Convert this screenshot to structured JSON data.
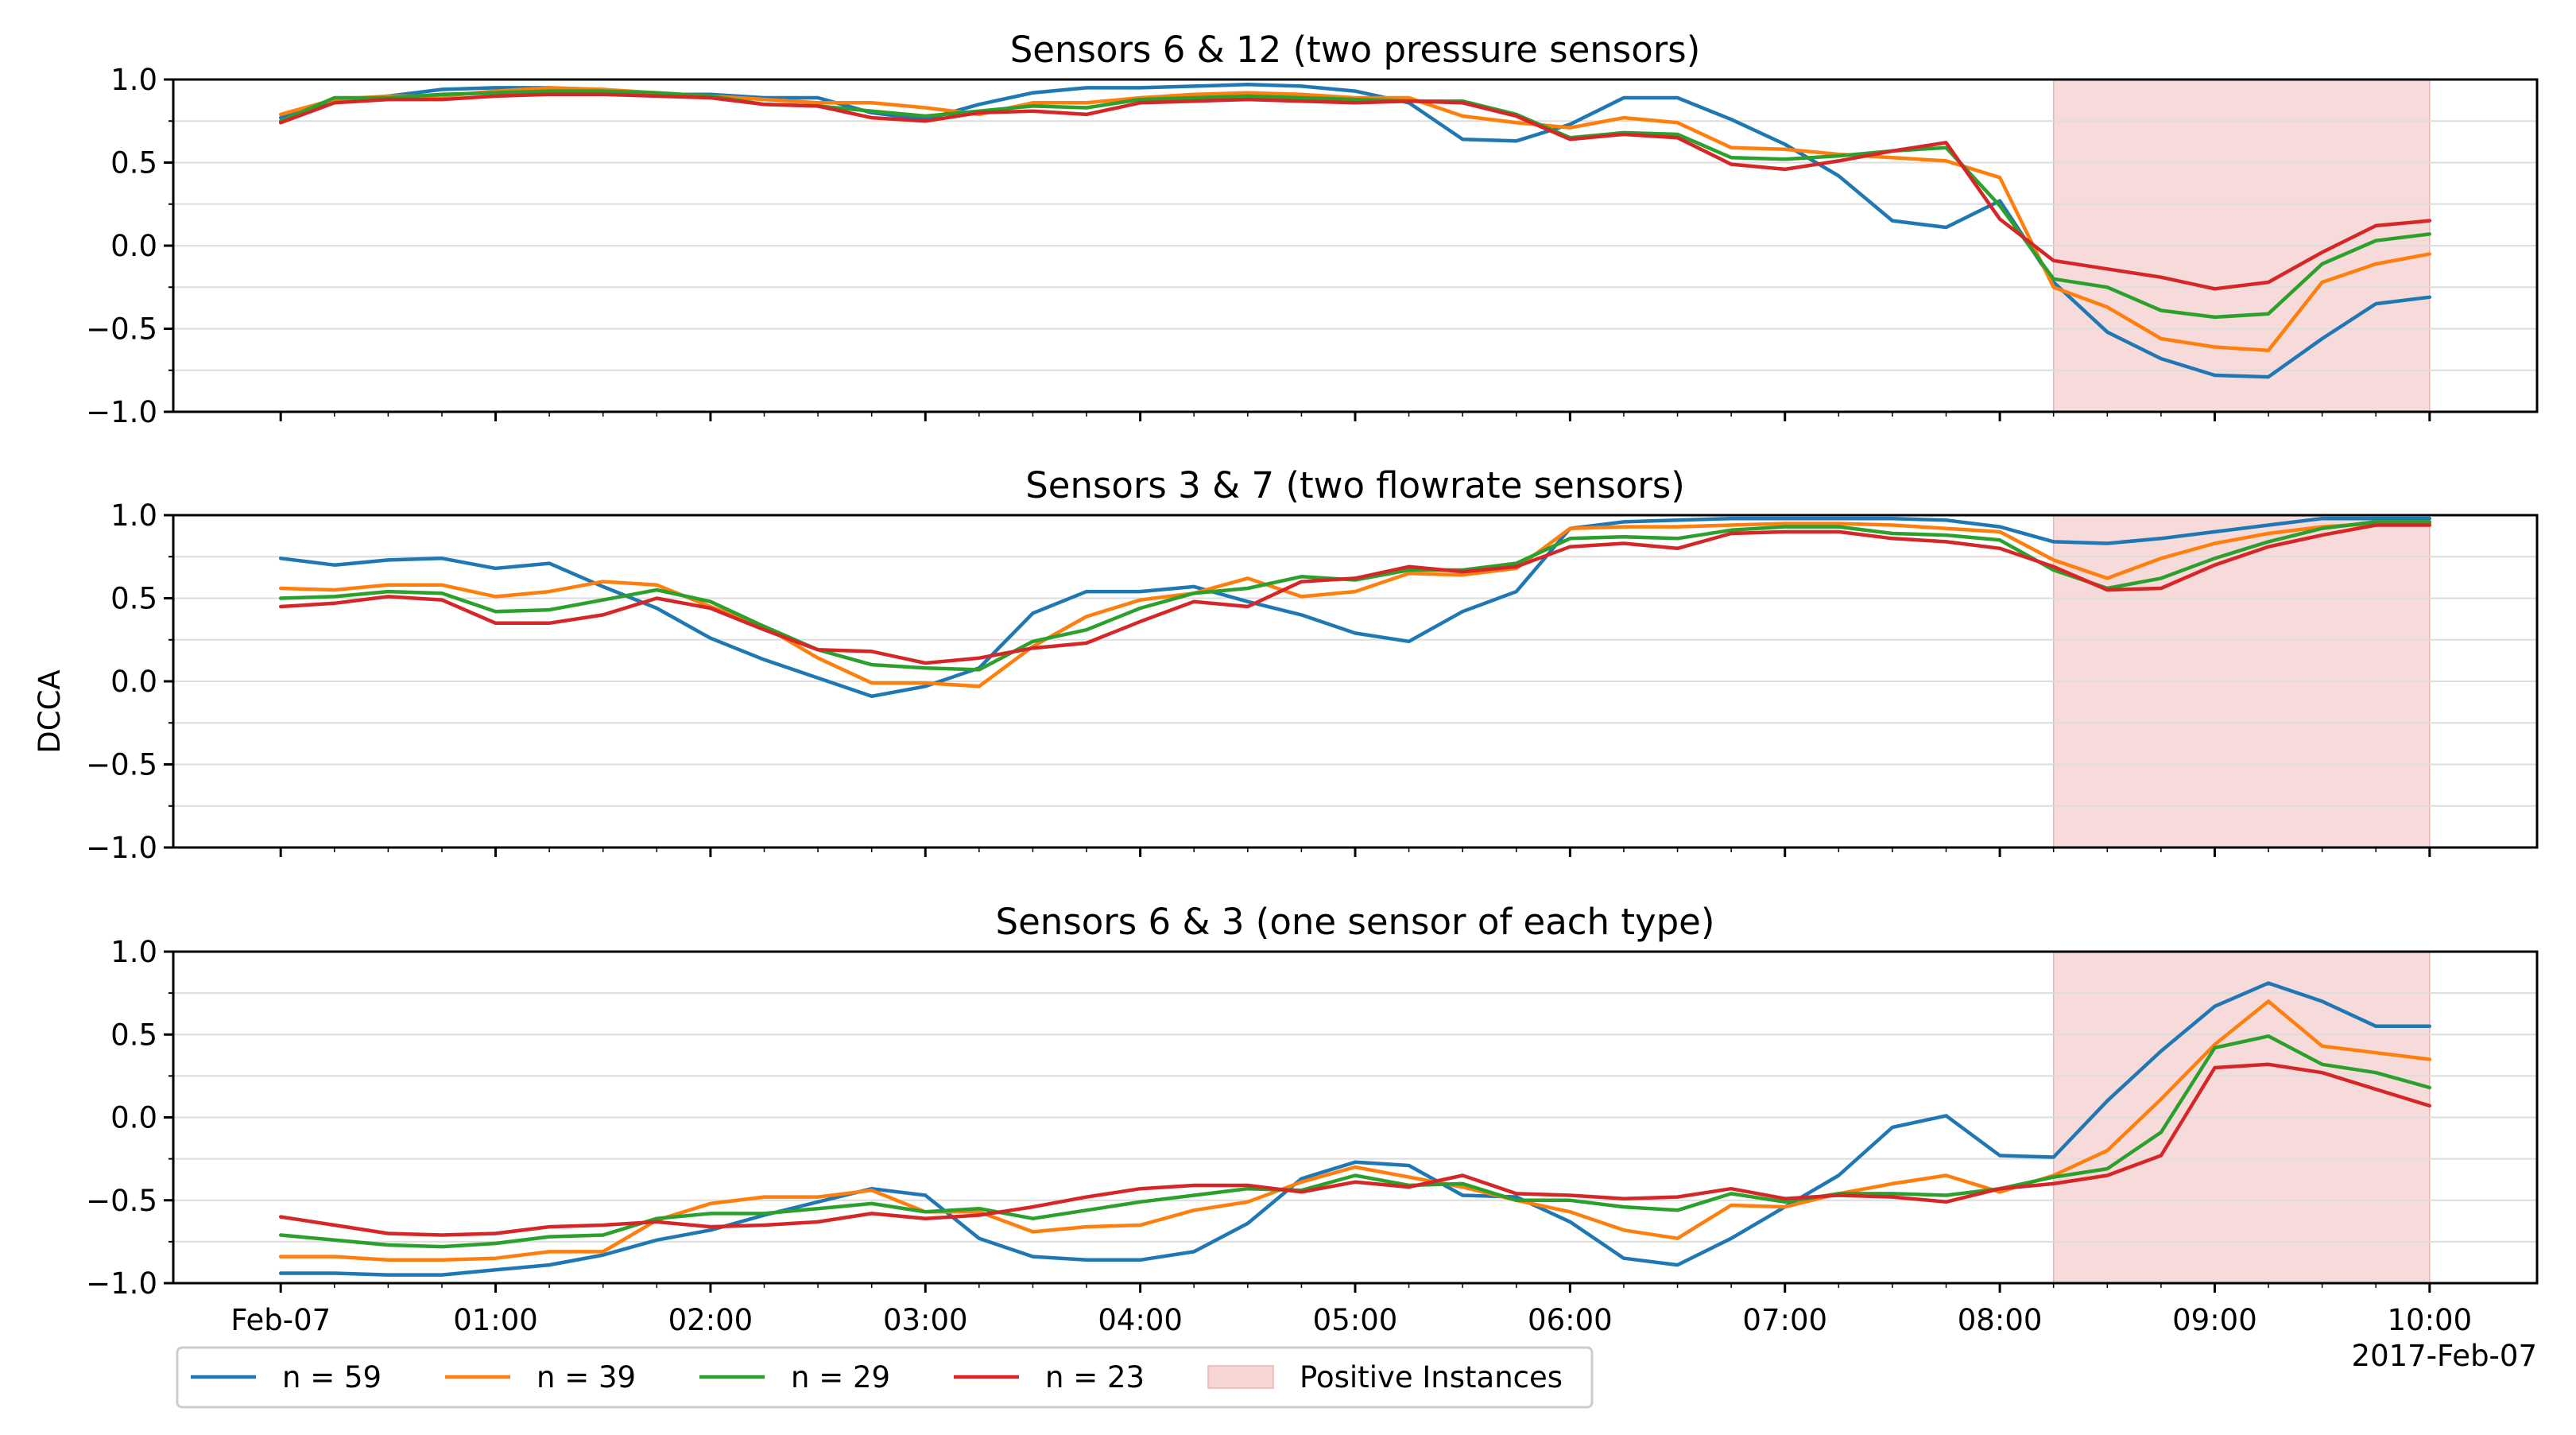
{
  "figure": {
    "ylabel": "DCCA",
    "date_label": "2017-Feb-07",
    "legend_label_positive": "Positive Instances"
  },
  "colors": {
    "n59": "#1f77b4",
    "n39": "#ff7f0e",
    "n29": "#2ca02c",
    "n23": "#d62728",
    "positive_fill": "#f6d5d3",
    "grid": "#dddddd"
  },
  "chart_data": [
    {
      "type": "line",
      "title": "Sensors 6 & 12 (two pressure sensors)",
      "xlabel": "",
      "ylabel": "DCCA",
      "xlim_hours": [
        -0.5,
        10.5
      ],
      "ylim": [
        -1.0,
        1.0
      ],
      "yticks": [
        "1.0",
        "0.5",
        "0.0",
        "−0.5",
        "−1.0"
      ],
      "xtick_labels": [],
      "positive_span_hours": [
        8.25,
        10.0
      ],
      "x": [
        0,
        0.25,
        0.5,
        0.75,
        1,
        1.25,
        1.5,
        1.75,
        2,
        2.25,
        2.5,
        2.75,
        3,
        3.25,
        3.5,
        3.75,
        4,
        4.25,
        4.5,
        4.75,
        5,
        5.25,
        5.5,
        5.75,
        6,
        6.25,
        6.5,
        6.75,
        7,
        7.25,
        7.5,
        7.75,
        8,
        8.25,
        8.5,
        8.75,
        9,
        9.25,
        9.5,
        9.75,
        10
      ],
      "series": [
        {
          "name": "n = 59",
          "color_key": "n59",
          "values": [
            0.77,
            0.87,
            0.9,
            0.94,
            0.95,
            0.95,
            0.92,
            0.91,
            0.91,
            0.89,
            0.89,
            0.8,
            0.76,
            0.85,
            0.92,
            0.95,
            0.95,
            0.96,
            0.97,
            0.96,
            0.93,
            0.86,
            0.64,
            0.63,
            0.73,
            0.89,
            0.89,
            0.76,
            0.61,
            0.42,
            0.15,
            0.11,
            0.27,
            -0.22,
            -0.52,
            -0.68,
            -0.78,
            -0.79,
            -0.56,
            -0.35,
            -0.31
          ]
        },
        {
          "name": "n = 39",
          "color_key": "n39",
          "values": [
            0.79,
            0.88,
            0.9,
            0.9,
            0.93,
            0.95,
            0.94,
            0.92,
            0.9,
            0.88,
            0.86,
            0.86,
            0.83,
            0.79,
            0.86,
            0.86,
            0.89,
            0.91,
            0.92,
            0.91,
            0.89,
            0.89,
            0.78,
            0.74,
            0.71,
            0.77,
            0.74,
            0.59,
            0.58,
            0.55,
            0.53,
            0.51,
            0.41,
            -0.25,
            -0.37,
            -0.56,
            -0.61,
            -0.63,
            -0.22,
            -0.11,
            -0.05
          ]
        },
        {
          "name": "n = 29",
          "color_key": "n29",
          "values": [
            0.75,
            0.89,
            0.89,
            0.91,
            0.92,
            0.93,
            0.93,
            0.92,
            0.9,
            0.85,
            0.84,
            0.81,
            0.78,
            0.81,
            0.84,
            0.83,
            0.88,
            0.89,
            0.9,
            0.89,
            0.88,
            0.87,
            0.87,
            0.79,
            0.65,
            0.68,
            0.67,
            0.53,
            0.52,
            0.54,
            0.57,
            0.59,
            0.24,
            -0.2,
            -0.25,
            -0.39,
            -0.43,
            -0.41,
            -0.11,
            0.03,
            0.07
          ]
        },
        {
          "name": "n = 23",
          "color_key": "n23",
          "values": [
            0.74,
            0.86,
            0.88,
            0.88,
            0.9,
            0.91,
            0.91,
            0.9,
            0.89,
            0.85,
            0.84,
            0.77,
            0.75,
            0.8,
            0.81,
            0.79,
            0.86,
            0.87,
            0.88,
            0.87,
            0.86,
            0.87,
            0.86,
            0.78,
            0.64,
            0.67,
            0.65,
            0.49,
            0.46,
            0.51,
            0.57,
            0.62,
            0.16,
            -0.09,
            -0.14,
            -0.19,
            -0.26,
            -0.22,
            -0.04,
            0.12,
            0.15
          ]
        }
      ]
    },
    {
      "type": "line",
      "title": "Sensors 3 & 7 (two flowrate sensors)",
      "xlabel": "",
      "ylabel": "DCCA",
      "xlim_hours": [
        -0.5,
        10.5
      ],
      "ylim": [
        -1.0,
        1.0
      ],
      "yticks": [
        "1.0",
        "0.5",
        "0.0",
        "−0.5",
        "−1.0"
      ],
      "xtick_labels": [],
      "positive_span_hours": [
        8.25,
        10.0
      ],
      "x": [
        0,
        0.25,
        0.5,
        0.75,
        1,
        1.25,
        1.5,
        1.75,
        2,
        2.25,
        2.5,
        2.75,
        3,
        3.25,
        3.5,
        3.75,
        4,
        4.25,
        4.5,
        4.75,
        5,
        5.25,
        5.5,
        5.75,
        6,
        6.25,
        6.5,
        6.75,
        7,
        7.25,
        7.5,
        7.75,
        8,
        8.25,
        8.5,
        8.75,
        9,
        9.25,
        9.5,
        9.75,
        10
      ],
      "series": [
        {
          "name": "n = 59",
          "color_key": "n59",
          "values": [
            0.74,
            0.7,
            0.73,
            0.74,
            0.68,
            0.71,
            0.57,
            0.44,
            0.26,
            0.13,
            0.02,
            -0.09,
            -0.03,
            0.08,
            0.41,
            0.54,
            0.54,
            0.57,
            0.48,
            0.4,
            0.29,
            0.24,
            0.42,
            0.54,
            0.92,
            0.96,
            0.97,
            0.98,
            0.98,
            0.98,
            0.98,
            0.97,
            0.93,
            0.84,
            0.83,
            0.86,
            0.9,
            0.94,
            0.98,
            0.98,
            0.98
          ]
        },
        {
          "name": "n = 39",
          "color_key": "n39",
          "values": [
            0.56,
            0.55,
            0.58,
            0.58,
            0.51,
            0.54,
            0.6,
            0.58,
            0.45,
            0.33,
            0.14,
            -0.01,
            -0.01,
            -0.03,
            0.21,
            0.39,
            0.49,
            0.53,
            0.62,
            0.51,
            0.54,
            0.65,
            0.64,
            0.68,
            0.92,
            0.93,
            0.93,
            0.94,
            0.95,
            0.95,
            0.94,
            0.92,
            0.9,
            0.73,
            0.62,
            0.74,
            0.83,
            0.89,
            0.93,
            0.95,
            0.95
          ]
        },
        {
          "name": "n = 29",
          "color_key": "n29",
          "values": [
            0.5,
            0.51,
            0.54,
            0.53,
            0.42,
            0.43,
            0.49,
            0.55,
            0.48,
            0.33,
            0.19,
            0.1,
            0.08,
            0.07,
            0.24,
            0.31,
            0.44,
            0.53,
            0.56,
            0.63,
            0.61,
            0.67,
            0.67,
            0.71,
            0.86,
            0.87,
            0.86,
            0.91,
            0.93,
            0.93,
            0.89,
            0.88,
            0.85,
            0.67,
            0.56,
            0.62,
            0.74,
            0.84,
            0.92,
            0.96,
            0.96
          ]
        },
        {
          "name": "n = 23",
          "color_key": "n23",
          "values": [
            0.45,
            0.47,
            0.51,
            0.49,
            0.35,
            0.35,
            0.4,
            0.5,
            0.44,
            0.31,
            0.19,
            0.18,
            0.11,
            0.14,
            0.2,
            0.23,
            0.36,
            0.48,
            0.45,
            0.6,
            0.62,
            0.69,
            0.66,
            0.69,
            0.81,
            0.83,
            0.8,
            0.89,
            0.9,
            0.9,
            0.86,
            0.84,
            0.8,
            0.69,
            0.55,
            0.56,
            0.7,
            0.81,
            0.88,
            0.94,
            0.94
          ]
        }
      ]
    },
    {
      "type": "line",
      "title": "Sensors 6 & 3 (one sensor of each type)",
      "xlabel": "",
      "ylabel": "DCCA",
      "xlim_hours": [
        -0.5,
        10.5
      ],
      "ylim": [
        -1.0,
        1.0
      ],
      "yticks": [
        "1.0",
        "0.5",
        "0.0",
        "−0.5",
        "−1.0"
      ],
      "xtick_labels": [
        "Feb-07",
        "01:00",
        "02:00",
        "03:00",
        "04:00",
        "05:00",
        "06:00",
        "07:00",
        "08:00",
        "09:00",
        "10:00"
      ],
      "positive_span_hours": [
        8.25,
        10.0
      ],
      "x": [
        0,
        0.25,
        0.5,
        0.75,
        1,
        1.25,
        1.5,
        1.75,
        2,
        2.25,
        2.5,
        2.75,
        3,
        3.25,
        3.5,
        3.75,
        4,
        4.25,
        4.5,
        4.75,
        5,
        5.25,
        5.5,
        5.75,
        6,
        6.25,
        6.5,
        6.75,
        7,
        7.25,
        7.5,
        7.75,
        8,
        8.25,
        8.5,
        8.75,
        9,
        9.25,
        9.5,
        9.75,
        10
      ],
      "series": [
        {
          "name": "n = 59",
          "color_key": "n59",
          "values": [
            -0.94,
            -0.94,
            -0.95,
            -0.95,
            -0.92,
            -0.89,
            -0.83,
            -0.74,
            -0.68,
            -0.59,
            -0.51,
            -0.43,
            -0.47,
            -0.73,
            -0.84,
            -0.86,
            -0.86,
            -0.81,
            -0.64,
            -0.37,
            -0.27,
            -0.29,
            -0.47,
            -0.48,
            -0.63,
            -0.85,
            -0.89,
            -0.73,
            -0.54,
            -0.35,
            -0.06,
            0.01,
            -0.23,
            -0.24,
            0.1,
            0.4,
            0.67,
            0.81,
            0.7,
            0.55,
            0.55
          ]
        },
        {
          "name": "n = 39",
          "color_key": "n39",
          "values": [
            -0.84,
            -0.84,
            -0.86,
            -0.86,
            -0.85,
            -0.81,
            -0.81,
            -0.62,
            -0.52,
            -0.48,
            -0.48,
            -0.44,
            -0.57,
            -0.57,
            -0.69,
            -0.66,
            -0.65,
            -0.56,
            -0.51,
            -0.39,
            -0.3,
            -0.36,
            -0.42,
            -0.5,
            -0.57,
            -0.68,
            -0.73,
            -0.53,
            -0.54,
            -0.46,
            -0.4,
            -0.35,
            -0.45,
            -0.35,
            -0.2,
            0.11,
            0.44,
            0.7,
            0.43,
            0.39,
            0.35
          ]
        },
        {
          "name": "n = 29",
          "color_key": "n29",
          "values": [
            -0.71,
            -0.74,
            -0.77,
            -0.78,
            -0.76,
            -0.72,
            -0.71,
            -0.61,
            -0.58,
            -0.58,
            -0.55,
            -0.52,
            -0.57,
            -0.55,
            -0.61,
            -0.56,
            -0.51,
            -0.47,
            -0.43,
            -0.44,
            -0.35,
            -0.41,
            -0.4,
            -0.5,
            -0.5,
            -0.54,
            -0.56,
            -0.46,
            -0.51,
            -0.46,
            -0.46,
            -0.47,
            -0.43,
            -0.36,
            -0.31,
            -0.09,
            0.42,
            0.49,
            0.32,
            0.27,
            0.18
          ]
        },
        {
          "name": "n = 23",
          "color_key": "n23",
          "values": [
            -0.6,
            -0.65,
            -0.7,
            -0.71,
            -0.7,
            -0.66,
            -0.65,
            -0.63,
            -0.66,
            -0.65,
            -0.63,
            -0.58,
            -0.61,
            -0.59,
            -0.54,
            -0.48,
            -0.43,
            -0.41,
            -0.41,
            -0.45,
            -0.39,
            -0.42,
            -0.35,
            -0.46,
            -0.47,
            -0.49,
            -0.48,
            -0.43,
            -0.49,
            -0.47,
            -0.48,
            -0.51,
            -0.43,
            -0.4,
            -0.35,
            -0.23,
            0.3,
            0.32,
            0.27,
            0.17,
            0.07
          ]
        }
      ]
    }
  ],
  "legend": {
    "items": [
      {
        "label": "n = 59",
        "color_key": "n59",
        "kind": "line"
      },
      {
        "label": "n = 39",
        "color_key": "n39",
        "kind": "line"
      },
      {
        "label": "n = 29",
        "color_key": "n29",
        "kind": "line"
      },
      {
        "label": "n = 23",
        "color_key": "n23",
        "kind": "line"
      },
      {
        "label": "Positive Instances",
        "color_key": "positive_fill",
        "kind": "patch"
      }
    ]
  }
}
